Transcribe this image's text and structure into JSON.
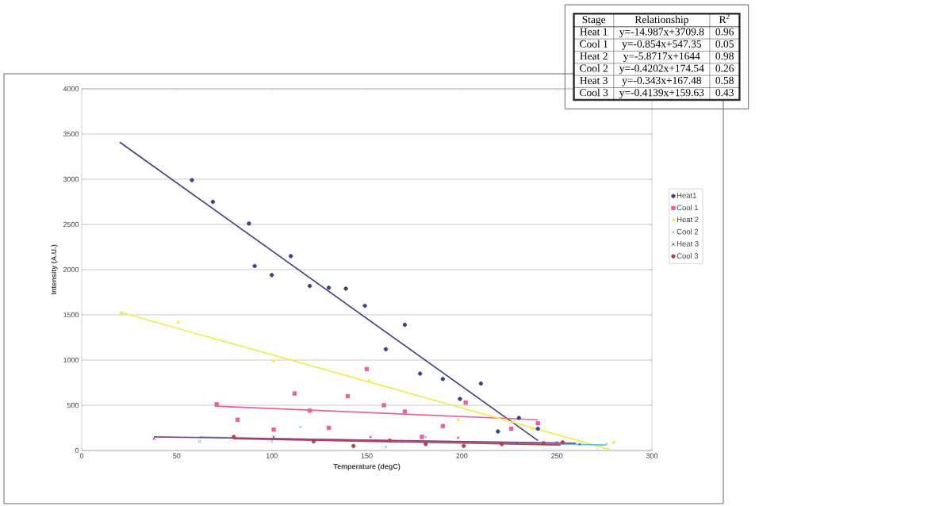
{
  "chart_data": {
    "type": "scatter",
    "xlabel": "Temperature (degC)",
    "ylabel": "Intensity (A.U.)",
    "xlim": [
      0,
      300
    ],
    "xticks": [
      0,
      50,
      100,
      150,
      200,
      250,
      300
    ],
    "ylim": [
      0,
      4000
    ],
    "yticks": [
      0,
      500,
      1000,
      1500,
      2000,
      2500,
      3000,
      3500,
      4000
    ],
    "grid": "y",
    "legend": "right",
    "series": [
      {
        "name": "Heat1",
        "color": "#3c3f8c",
        "marker": "circle",
        "x": [
          58,
          69,
          88,
          91,
          100,
          110,
          120,
          130,
          139,
          149,
          160,
          170,
          178,
          190,
          199,
          210,
          219,
          230,
          240
        ],
        "values": [
          2990,
          2750,
          2510,
          2040,
          1940,
          2150,
          1820,
          1800,
          1790,
          1600,
          1120,
          1390,
          850,
          790,
          570,
          740,
          210,
          360,
          240
        ]
      },
      {
        "name": "Cool 1",
        "color": "#ec5fa0",
        "marker": "square",
        "x": [
          71,
          82,
          101,
          112,
          120,
          130,
          140,
          150,
          159,
          170,
          179,
          190,
          202,
          226,
          240
        ],
        "values": [
          510,
          340,
          230,
          630,
          440,
          250,
          600,
          900,
          500,
          430,
          150,
          270,
          530,
          240,
          300
        ]
      },
      {
        "name": "Heat 2",
        "color": "#eeee44",
        "marker": "triangle",
        "x": [
          21,
          51,
          101,
          151,
          198,
          237,
          280
        ],
        "values": [
          1520,
          1420,
          990,
          770,
          340,
          240,
          90
        ]
      },
      {
        "name": "Cool 2",
        "color": "#55c4e6",
        "marker": "cross",
        "x": [
          62,
          100,
          115,
          160,
          181,
          276
        ],
        "values": [
          100,
          100,
          260,
          40,
          150,
          70
        ]
      },
      {
        "name": "Heat 3",
        "color": "#8b3d8e",
        "marker": "cross",
        "x": [
          38,
          101,
          152,
          198,
          229,
          250,
          262
        ],
        "values": [
          130,
          150,
          150,
          140,
          80,
          90,
          70
        ]
      },
      {
        "name": "Cool 3",
        "color": "#b8404c",
        "marker": "circle",
        "x": [
          80,
          122,
          143,
          162,
          181,
          201,
          221,
          243,
          253
        ],
        "values": [
          150,
          100,
          50,
          110,
          70,
          50,
          70,
          80,
          90
        ]
      },
      {
        "type": "line",
        "color": "#3c3f8c",
        "x": [
          20,
          240
        ],
        "values": [
          3410,
          110
        ]
      },
      {
        "type": "line",
        "color": "#ec5fa0",
        "x": [
          70,
          240
        ],
        "values": [
          490,
          340
        ]
      },
      {
        "type": "line",
        "color": "#eeee44",
        "x": [
          20,
          278
        ],
        "values": [
          1530,
          10
        ]
      },
      {
        "type": "line",
        "color": "#55c4e6",
        "x": [
          62,
          276
        ],
        "values": [
          150,
          60
        ]
      },
      {
        "type": "line",
        "color": "#8b3d8e",
        "x": [
          38,
          260
        ],
        "values": [
          150,
          80
        ]
      },
      {
        "type": "line",
        "color": "#b8404c",
        "x": [
          80,
          252
        ],
        "values": [
          130,
          60
        ]
      }
    ],
    "annotations": [
      "Stage",
      "Relationship",
      "R$^{2}$",
      "Heat 1",
      "y=-14.987x+3709.8",
      "0.96",
      "Cool 1",
      "y=-0.854x+547.35",
      "0.05",
      "Heat 2",
      "y=-5.8717x+1644",
      "0.98",
      "Cool 2",
      "y=-0.4202x+174.54",
      "0.26",
      "Heat 3",
      "y=-0.343x+167.48",
      "0.58",
      "Cool 3",
      "y=-0.4139x+159.63",
      "0.43"
    ]
  }
}
